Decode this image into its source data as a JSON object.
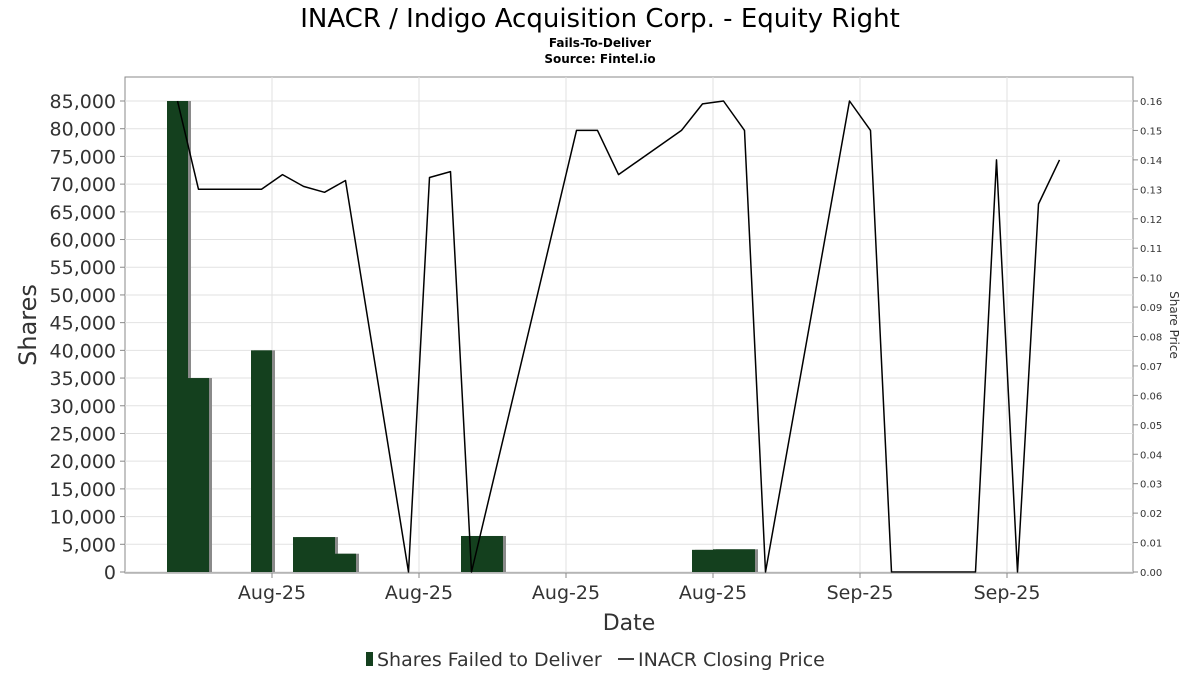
{
  "chart_data": {
    "type": "bar",
    "title": "INACR / Indigo Acquisition Corp. - Equity Right",
    "subtitle": "Fails-To-Deliver",
    "source": "Source: Fintel.io",
    "xlabel": "Date",
    "ylabel": "Shares",
    "y2label": "Share Price",
    "ylim": [
      0,
      85000
    ],
    "y2lim": [
      0,
      0.16
    ],
    "y_ticks": [
      0,
      5000,
      10000,
      15000,
      20000,
      25000,
      30000,
      35000,
      40000,
      45000,
      50000,
      55000,
      60000,
      65000,
      70000,
      75000,
      80000,
      85000
    ],
    "y_tick_labels": [
      "0",
      "5,000",
      "10,000",
      "15,000",
      "20,000",
      "25,000",
      "30,000",
      "35,000",
      "40,000",
      "45,000",
      "50,000",
      "55,000",
      "60,000",
      "65,000",
      "70,000",
      "75,000",
      "80,000",
      "85,000"
    ],
    "y2_ticks": [
      0,
      0.01,
      0.02,
      0.03,
      0.04,
      0.05,
      0.06,
      0.07,
      0.08,
      0.09,
      0.1,
      0.11,
      0.12,
      0.13,
      0.14,
      0.15,
      0.16
    ],
    "y2_tick_labels": [
      "0.00",
      "0.01",
      "0.02",
      "0.03",
      "0.04",
      "0.05",
      "0.06",
      "0.07",
      "0.08",
      "0.09",
      "0.10",
      "0.11",
      "0.12",
      "0.13",
      "0.14",
      "0.15",
      "0.16"
    ],
    "x_range": [
      -2.5,
      45.5
    ],
    "x_ticks": [
      4.5,
      11.5,
      18.5,
      25.5,
      32.5,
      39.5
    ],
    "x_tick_labels": [
      "Aug-25",
      "Aug-25",
      "Aug-25",
      "Aug-25",
      "Sep-25",
      "Sep-25"
    ],
    "grid": true,
    "legend_position": "bottom",
    "legend": [
      {
        "label": "Shares Failed to Deliver",
        "color": "#14401e"
      },
      {
        "label": "INACR Closing Price",
        "color": "#000000"
      }
    ],
    "series": [
      {
        "name": "Shares Failed to Deliver",
        "kind": "bar",
        "axis": "left",
        "color": "#14401e",
        "x": [
          0,
          1,
          4,
          6,
          7,
          8,
          14,
          15,
          25,
          26,
          27
        ],
        "values": [
          85000,
          35000,
          40000,
          6300,
          6300,
          3300,
          6500,
          6500,
          4000,
          4100,
          4100
        ]
      },
      {
        "name": "INACR Closing Price",
        "kind": "line",
        "axis": "right",
        "color": "#000000",
        "x": [
          0,
          1,
          4,
          5,
          6,
          7,
          8,
          11,
          12,
          13,
          14,
          18,
          19,
          20,
          21,
          24,
          25,
          26,
          27,
          28,
          32,
          33,
          34,
          38,
          39,
          40,
          41,
          42
        ],
        "values": [
          0.16,
          0.13,
          0.13,
          0.135,
          0.131,
          0.129,
          0.133,
          0.0,
          0.134,
          0.136,
          0.0,
          0.12,
          0.15,
          0.15,
          0.135,
          0.15,
          0.159,
          0.16,
          0.15,
          0.0,
          0.16,
          0.15,
          0.0,
          0.0,
          0.14,
          0.0,
          0.125,
          0.14
        ]
      }
    ]
  }
}
